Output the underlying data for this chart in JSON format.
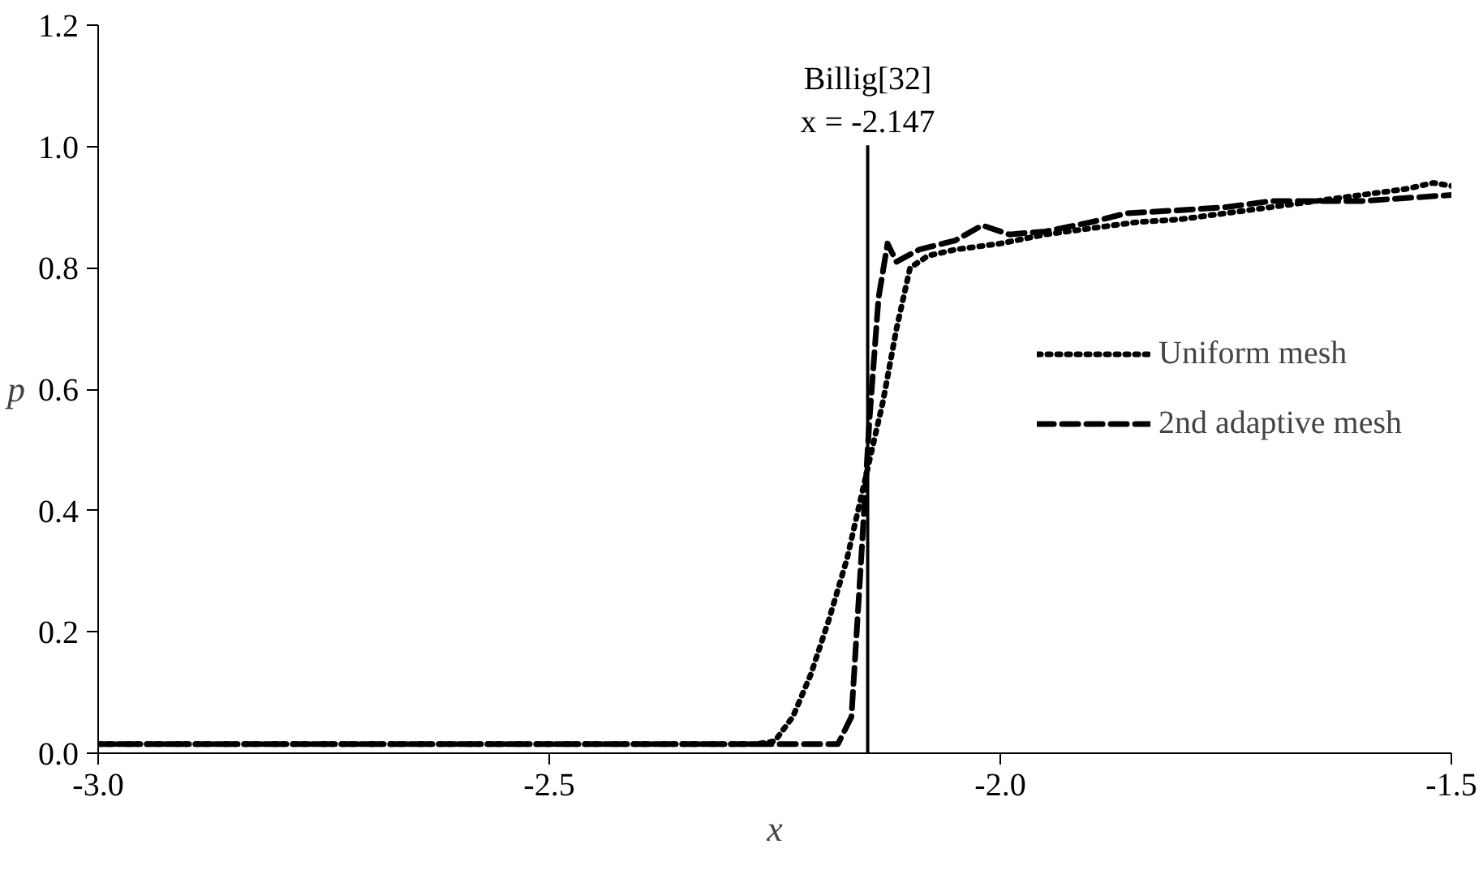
{
  "chart_data": {
    "type": "line",
    "xlabel": "x",
    "ylabel": "p",
    "xlim": [
      -3.0,
      -1.5
    ],
    "xticks": [
      {
        "value": -3.0,
        "label": "-3.0"
      },
      {
        "value": -2.5,
        "label": "-2.5"
      },
      {
        "value": -2.0,
        "label": "-2.0"
      },
      {
        "value": -1.5,
        "label": "-1.5"
      }
    ],
    "ylim": [
      0.0,
      1.2
    ],
    "yticks": [
      {
        "value": 0.0,
        "label": "0.0"
      },
      {
        "value": 0.2,
        "label": "0.2"
      },
      {
        "value": 0.4,
        "label": "0.4"
      },
      {
        "value": 0.6,
        "label": "0.6"
      },
      {
        "value": 0.8,
        "label": "0.8"
      },
      {
        "value": 1.0,
        "label": "1.0"
      },
      {
        "value": 1.2,
        "label": "1.2"
      }
    ],
    "grid": false,
    "legend": "right",
    "marker": "none",
    "series": [
      {
        "name": "Uniform mesh",
        "color": "#000000",
        "line_style": "dotted",
        "x": [
          -3.0,
          -2.8,
          -2.6,
          -2.4,
          -2.27,
          -2.25,
          -2.23,
          -2.21,
          -2.19,
          -2.17,
          -2.15,
          -2.13,
          -2.115,
          -2.1,
          -2.08,
          -2.05,
          -2.0,
          -1.95,
          -1.9,
          -1.85,
          -1.8,
          -1.75,
          -1.7,
          -1.65,
          -1.6,
          -1.55,
          -1.52,
          -1.5
        ],
        "values": [
          0.015,
          0.015,
          0.015,
          0.015,
          0.015,
          0.02,
          0.06,
          0.13,
          0.22,
          0.32,
          0.45,
          0.58,
          0.7,
          0.8,
          0.82,
          0.83,
          0.84,
          0.855,
          0.865,
          0.875,
          0.88,
          0.89,
          0.9,
          0.91,
          0.92,
          0.93,
          0.94,
          0.935
        ]
      },
      {
        "name": "2nd adaptive mesh",
        "color": "#000000",
        "line_style": "dashed",
        "x": [
          -3.0,
          -2.8,
          -2.6,
          -2.4,
          -2.18,
          -2.165,
          -2.155,
          -2.145,
          -2.135,
          -2.125,
          -2.115,
          -2.09,
          -2.05,
          -2.02,
          -1.99,
          -1.95,
          -1.9,
          -1.86,
          -1.8,
          -1.75,
          -1.7,
          -1.6,
          -1.5
        ],
        "values": [
          0.015,
          0.015,
          0.015,
          0.015,
          0.015,
          0.06,
          0.3,
          0.55,
          0.75,
          0.84,
          0.81,
          0.83,
          0.845,
          0.87,
          0.855,
          0.86,
          0.875,
          0.89,
          0.895,
          0.9,
          0.91,
          0.91,
          0.92
        ]
      }
    ],
    "ref_lines": [
      {
        "axis": "x",
        "value": -2.147,
        "label": "Billig[32]\nx = -2.147",
        "color": "#000000",
        "line_style": "solid"
      }
    ]
  }
}
